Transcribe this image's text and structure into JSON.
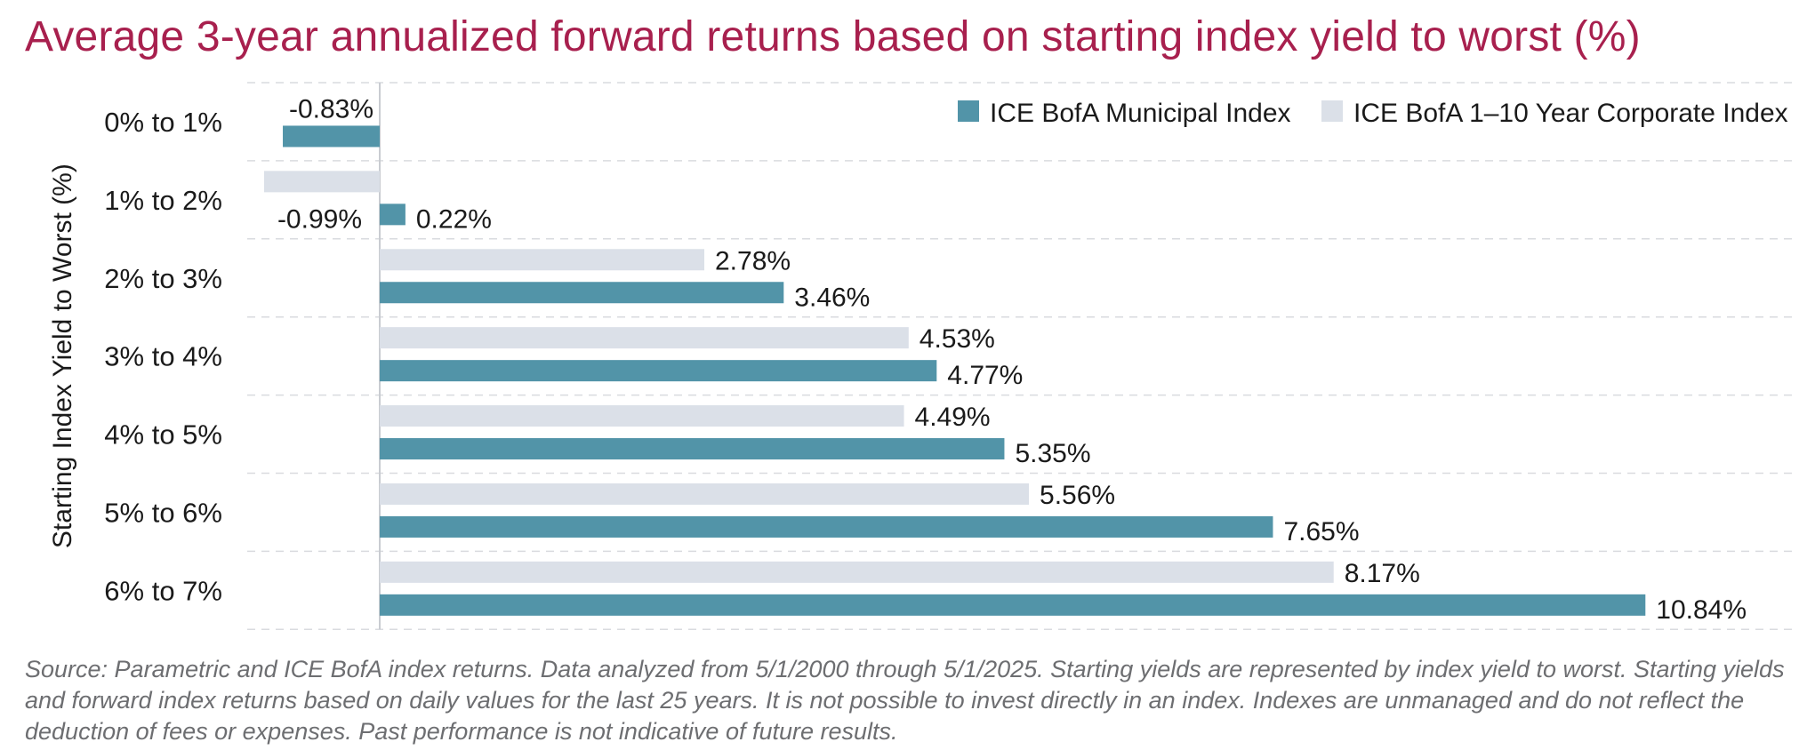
{
  "chart_data": {
    "type": "bar",
    "orientation": "horizontal",
    "title": "Average 3-year annualized forward returns based on starting index yield to worst (%)",
    "ylabel": "Starting Index Yield to Worst (%)",
    "xlabel": "",
    "categories": [
      "0% to 1%",
      "1% to 2%",
      "2% to 3%",
      "3% to 4%",
      "4% to 5%",
      "5% to 6%",
      "6% to 7%"
    ],
    "series": [
      {
        "name": "ICE BofA 1–10 Year Corporate Index",
        "color": "#dbe0e8",
        "values": [
          null,
          -0.99,
          2.78,
          4.53,
          4.49,
          5.56,
          8.17
        ],
        "labels": [
          null,
          "-0.99%",
          "2.78%",
          "4.53%",
          "4.49%",
          "5.56%",
          "8.17%"
        ]
      },
      {
        "name": "ICE BofA Municipal Index",
        "color": "#5294a8",
        "values": [
          -0.83,
          0.22,
          3.46,
          4.77,
          5.35,
          7.65,
          10.84
        ],
        "labels": [
          "-0.83%",
          "0.22%",
          "3.46%",
          "4.77%",
          "5.35%",
          "7.65%",
          "10.84%"
        ]
      }
    ],
    "legend": {
      "position": "top-right",
      "order": [
        "ICE BofA Municipal Index",
        "ICE BofA 1–10 Year Corporate Index"
      ]
    },
    "xlim": [
      -1.2,
      11.6
    ],
    "grid": "horizontal dashed category separators",
    "title_color": "#a8204e"
  },
  "source_note": "Source: Parametric and ICE BofA index returns. Data analyzed from 5/1/2000 through 5/1/2025. Starting yields are represented by index yield to worst. Starting yields and forward index returns based on daily values for the last 25 years. It is not possible to invest directly in an index. Indexes are unmanaged and do not reflect the deduction of fees or expenses. Past performance is not indicative of future results."
}
